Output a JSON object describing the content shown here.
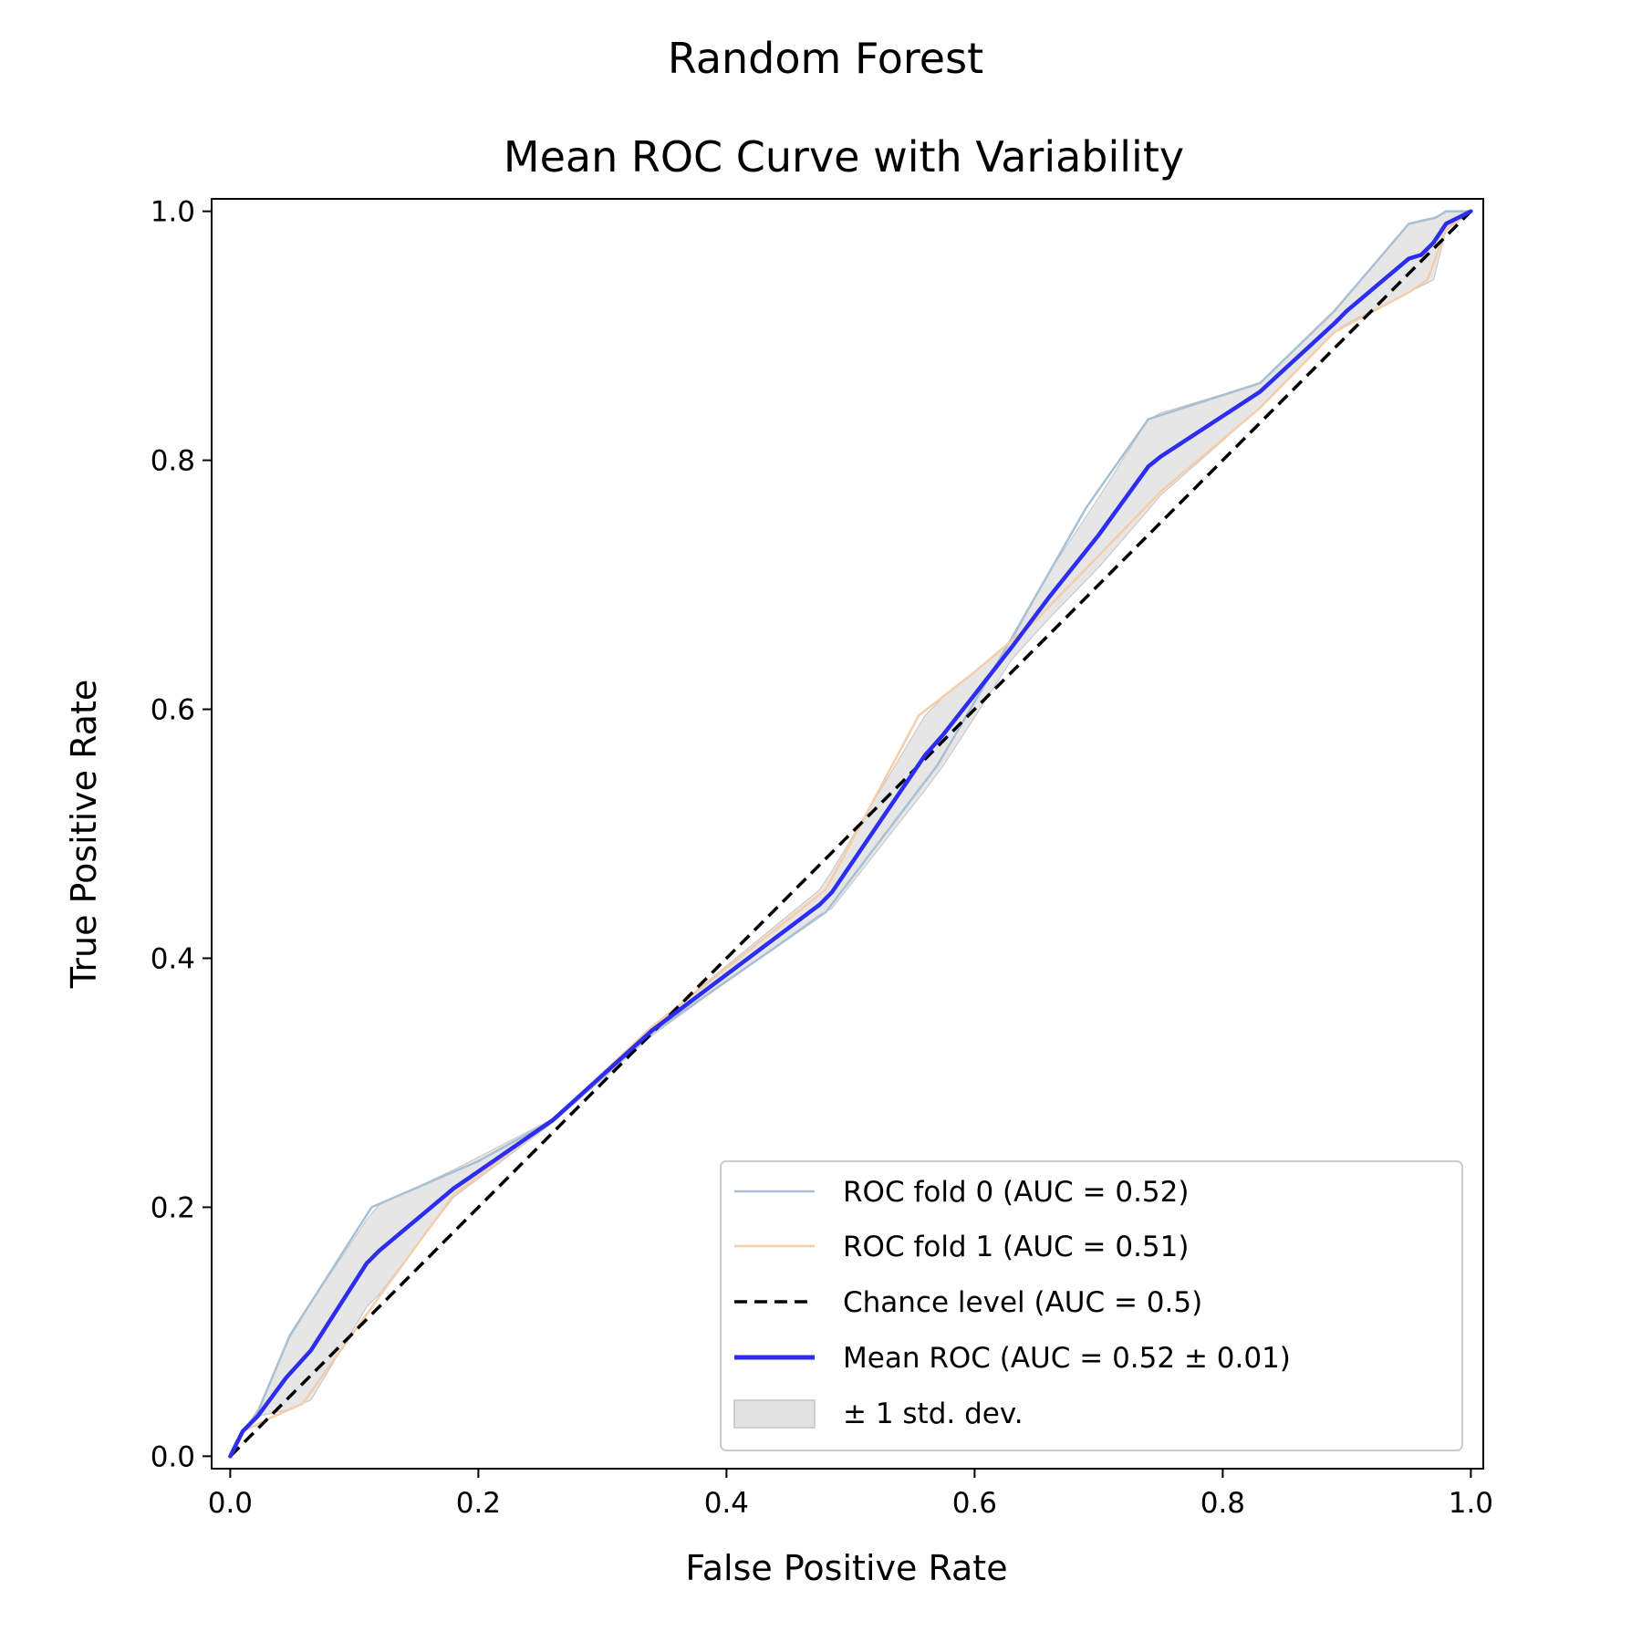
{
  "chart_data": {
    "type": "line",
    "title": "Random Forest",
    "subtitle": "Mean ROC Curve with Variability",
    "xlabel": "False Positive Rate",
    "ylabel": "True Positive Rate",
    "xlim": [
      -0.015,
      1.01
    ],
    "ylim": [
      -0.01,
      1.01
    ],
    "xticks": [
      "0.0",
      "0.2",
      "0.4",
      "0.6",
      "0.8",
      "1.0"
    ],
    "yticks": [
      "0.0",
      "0.2",
      "0.4",
      "0.6",
      "0.8",
      "1.0"
    ],
    "grid": false,
    "legend_position": "lower-right",
    "series": [
      {
        "name": "ROC fold 0 (AUC = 0.52)",
        "color": "#a9c0d4",
        "x": [
          0,
          0.01,
          0.022,
          0.048,
          0.114,
          0.2,
          0.26,
          0.34,
          0.48,
          0.57,
          0.62,
          0.69,
          0.74,
          0.83,
          0.89,
          0.95,
          0.972,
          0.98,
          1.0
        ],
        "y": [
          0,
          0.02,
          0.035,
          0.097,
          0.2,
          0.237,
          0.27,
          0.34,
          0.437,
          0.555,
          0.64,
          0.762,
          0.833,
          0.862,
          0.92,
          0.99,
          0.995,
          1.0,
          1.0
        ]
      },
      {
        "name": "ROC fold 1 (AUC = 0.51)",
        "color": "#f6cda8",
        "x": [
          0,
          0.01,
          0.035,
          0.058,
          0.12,
          0.18,
          0.26,
          0.34,
          0.48,
          0.555,
          0.6,
          0.65,
          0.75,
          0.83,
          0.89,
          0.95,
          0.965,
          0.98,
          1.0
        ],
        "y": [
          0,
          0.02,
          0.032,
          0.042,
          0.128,
          0.21,
          0.27,
          0.345,
          0.455,
          0.595,
          0.63,
          0.672,
          0.775,
          0.842,
          0.903,
          0.935,
          0.945,
          0.985,
          1.0
        ]
      },
      {
        "name": "Chance level (AUC = 0.5)",
        "color": "#000000",
        "dashed": true,
        "x": [
          0,
          1
        ],
        "y": [
          0,
          1
        ]
      },
      {
        "name": "Mean ROC (AUC = 0.52 ± 0.01)",
        "color": "#2d2df0",
        "x": [
          0,
          0.01,
          0.022,
          0.045,
          0.065,
          0.11,
          0.12,
          0.18,
          0.26,
          0.34,
          0.475,
          0.485,
          0.56,
          0.575,
          0.63,
          0.66,
          0.7,
          0.74,
          0.75,
          0.83,
          0.89,
          0.9,
          0.95,
          0.96,
          0.97,
          0.98,
          0.99,
          1.0
        ],
        "y": [
          0,
          0.02,
          0.032,
          0.063,
          0.085,
          0.155,
          0.165,
          0.215,
          0.27,
          0.342,
          0.443,
          0.453,
          0.563,
          0.58,
          0.65,
          0.69,
          0.74,
          0.795,
          0.803,
          0.855,
          0.91,
          0.92,
          0.962,
          0.965,
          0.975,
          0.99,
          0.995,
          1.0
        ]
      }
    ],
    "band": {
      "name": "± 1 std. dev.",
      "color": "#e2e2e2",
      "edge": "#c4c4c4",
      "x": [
        0,
        0.01,
        0.022,
        0.045,
        0.065,
        0.11,
        0.12,
        0.18,
        0.26,
        0.34,
        0.475,
        0.485,
        0.56,
        0.575,
        0.63,
        0.66,
        0.7,
        0.74,
        0.75,
        0.83,
        0.89,
        0.9,
        0.95,
        0.96,
        0.97,
        0.98,
        0.99,
        1.0
      ],
      "upper": [
        0,
        0.02,
        0.037,
        0.09,
        0.123,
        0.19,
        0.202,
        0.23,
        0.271,
        0.345,
        0.455,
        0.47,
        0.595,
        0.61,
        0.655,
        0.71,
        0.77,
        0.833,
        0.838,
        0.862,
        0.92,
        0.932,
        0.99,
        0.993,
        0.995,
        1.0,
        1.0,
        1.0
      ],
      "lower": [
        0,
        0.02,
        0.032,
        0.037,
        0.045,
        0.12,
        0.13,
        0.208,
        0.268,
        0.338,
        0.435,
        0.44,
        0.535,
        0.555,
        0.64,
        0.673,
        0.714,
        0.76,
        0.772,
        0.842,
        0.903,
        0.91,
        0.935,
        0.94,
        0.945,
        0.985,
        0.995,
        1.0
      ]
    }
  }
}
